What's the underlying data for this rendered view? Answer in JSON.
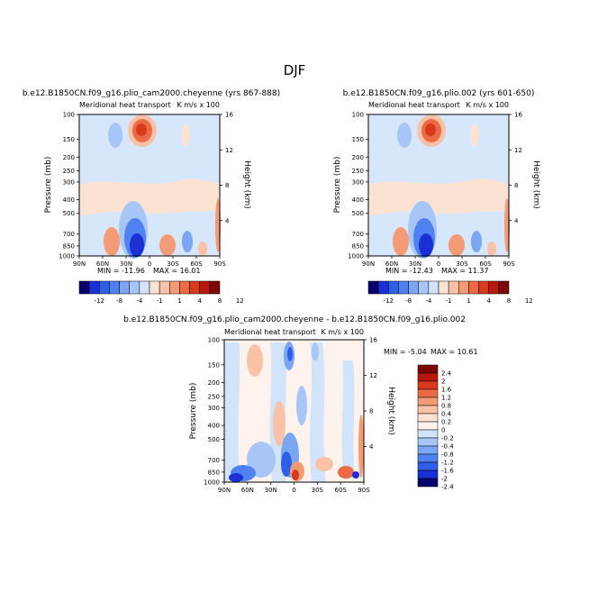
{
  "page_title": "DJF",
  "chart_data": [
    {
      "type": "heatmap",
      "title": "b.e12.B1850CN.f09_g16.plio_cam2000.cheyenne (yrs 867-888)",
      "subtitle_left": "Meridional heat transport",
      "subtitle_right": "K m/s x 100",
      "ylabel": "Pressure (mb)",
      "ylabel_right": "Height (km)",
      "x_ticks": [
        "90N",
        "60N",
        "30N",
        "0",
        "30S",
        "60S",
        "90S"
      ],
      "y_ticks": [
        100,
        150,
        200,
        250,
        300,
        400,
        500,
        700,
        850,
        1000
      ],
      "y_ticks_right": [
        4,
        8,
        12,
        16
      ],
      "min_label": "MIN = -11.96",
      "max_label": "MAX = 16.01",
      "legend_labels": [
        "-12",
        "-8",
        "-4",
        "-1",
        "1",
        "4",
        "8",
        "12"
      ],
      "legend_placement": "bottom"
    },
    {
      "type": "heatmap",
      "title": "b.e12.B1850CN.f09_g16.plio.002 (yrs 601-650)",
      "subtitle_left": "Meridional heat transport",
      "subtitle_right": "K m/s x 100",
      "ylabel": "Pressure (mb)",
      "ylabel_right": "Height (km)",
      "x_ticks": [
        "90N",
        "60N",
        "30N",
        "0",
        "30S",
        "60S",
        "90S"
      ],
      "y_ticks": [
        100,
        150,
        200,
        250,
        300,
        400,
        500,
        700,
        850,
        1000
      ],
      "y_ticks_right": [
        4,
        8,
        12,
        16
      ],
      "min_label": "MIN = -12.43",
      "max_label": "MAX = 11.37",
      "legend_labels": [
        "-12",
        "-8",
        "-4",
        "-1",
        "1",
        "4",
        "8",
        "12"
      ],
      "legend_placement": "bottom"
    },
    {
      "type": "heatmap",
      "title": "b.e12.B1850CN.f09_g16.plio_cam2000.cheyenne - b.e12.B1850CN.f09_g16.plio.002",
      "subtitle_left": "Meridional heat transport",
      "subtitle_right": "K m/s x 100",
      "ylabel": "Pressure (mb)",
      "ylabel_right": "Height (km)",
      "x_ticks": [
        "90N",
        "60N",
        "30N",
        "0",
        "30S",
        "60S",
        "90S"
      ],
      "y_ticks": [
        100,
        150,
        200,
        250,
        300,
        400,
        500,
        700,
        850,
        1000
      ],
      "y_ticks_right": [
        4,
        8,
        12,
        16
      ],
      "min_label": "MIN = -5.04",
      "max_label": "MAX = 10.61",
      "legend_labels": [
        "2.4",
        "2",
        "1.6",
        "1.2",
        "0.8",
        "0.4",
        "0.2",
        "0",
        "-0.2",
        "-0.4",
        "-0.8",
        "-1.2",
        "-1.6",
        "-2",
        "-2.4"
      ],
      "legend_placement": "right"
    }
  ],
  "colors": {
    "abs_scale": [
      "#08006e",
      "#1a2fd6",
      "#2f5ee8",
      "#4f82f0",
      "#7aa6f4",
      "#a7c6f7",
      "#d2e4fb",
      "#fbe3d3",
      "#f9c2a6",
      "#f49a75",
      "#ec6a45",
      "#d93a1e",
      "#b8180c",
      "#7d0606"
    ],
    "diff_scale": [
      "#7d0606",
      "#b8180c",
      "#d93a1e",
      "#ec6a45",
      "#f49a75",
      "#f9c2a6",
      "#fbe3d3",
      "#fdf3ec",
      "#d2e4fb",
      "#a7c6f7",
      "#7aa6f4",
      "#4f82f0",
      "#2f5ee8",
      "#1a2fd6",
      "#08006e"
    ],
    "field_bg": "#d7e7fb",
    "field_warm": "#fbe2d2"
  }
}
